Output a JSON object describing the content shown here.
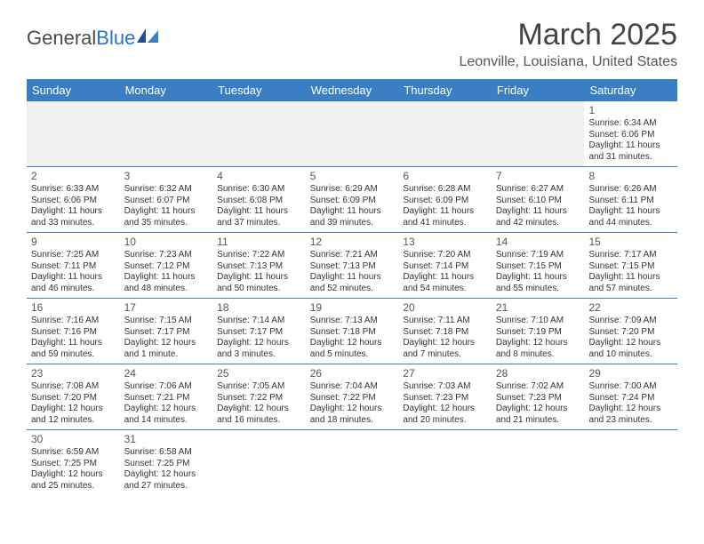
{
  "brand": {
    "part1": "General",
    "part2": "Blue"
  },
  "title": "March 2025",
  "location": "Leonville, Louisiana, United States",
  "calendar": {
    "type": "table",
    "header_bg": "#3a7fc4",
    "header_fg": "#ffffff",
    "row_border_color": "#3a7fc4",
    "empty_bg": "#f0f0f0",
    "text_color": "#333333",
    "day_headers": [
      "Sunday",
      "Monday",
      "Tuesday",
      "Wednesday",
      "Thursday",
      "Friday",
      "Saturday"
    ],
    "weeks": [
      [
        null,
        null,
        null,
        null,
        null,
        null,
        {
          "d": "1",
          "sr": "Sunrise: 6:34 AM",
          "ss": "Sunset: 6:06 PM",
          "dl1": "Daylight: 11 hours",
          "dl2": "and 31 minutes."
        }
      ],
      [
        {
          "d": "2",
          "sr": "Sunrise: 6:33 AM",
          "ss": "Sunset: 6:06 PM",
          "dl1": "Daylight: 11 hours",
          "dl2": "and 33 minutes."
        },
        {
          "d": "3",
          "sr": "Sunrise: 6:32 AM",
          "ss": "Sunset: 6:07 PM",
          "dl1": "Daylight: 11 hours",
          "dl2": "and 35 minutes."
        },
        {
          "d": "4",
          "sr": "Sunrise: 6:30 AM",
          "ss": "Sunset: 6:08 PM",
          "dl1": "Daylight: 11 hours",
          "dl2": "and 37 minutes."
        },
        {
          "d": "5",
          "sr": "Sunrise: 6:29 AM",
          "ss": "Sunset: 6:09 PM",
          "dl1": "Daylight: 11 hours",
          "dl2": "and 39 minutes."
        },
        {
          "d": "6",
          "sr": "Sunrise: 6:28 AM",
          "ss": "Sunset: 6:09 PM",
          "dl1": "Daylight: 11 hours",
          "dl2": "and 41 minutes."
        },
        {
          "d": "7",
          "sr": "Sunrise: 6:27 AM",
          "ss": "Sunset: 6:10 PM",
          "dl1": "Daylight: 11 hours",
          "dl2": "and 42 minutes."
        },
        {
          "d": "8",
          "sr": "Sunrise: 6:26 AM",
          "ss": "Sunset: 6:11 PM",
          "dl1": "Daylight: 11 hours",
          "dl2": "and 44 minutes."
        }
      ],
      [
        {
          "d": "9",
          "sr": "Sunrise: 7:25 AM",
          "ss": "Sunset: 7:11 PM",
          "dl1": "Daylight: 11 hours",
          "dl2": "and 46 minutes."
        },
        {
          "d": "10",
          "sr": "Sunrise: 7:23 AM",
          "ss": "Sunset: 7:12 PM",
          "dl1": "Daylight: 11 hours",
          "dl2": "and 48 minutes."
        },
        {
          "d": "11",
          "sr": "Sunrise: 7:22 AM",
          "ss": "Sunset: 7:13 PM",
          "dl1": "Daylight: 11 hours",
          "dl2": "and 50 minutes."
        },
        {
          "d": "12",
          "sr": "Sunrise: 7:21 AM",
          "ss": "Sunset: 7:13 PM",
          "dl1": "Daylight: 11 hours",
          "dl2": "and 52 minutes."
        },
        {
          "d": "13",
          "sr": "Sunrise: 7:20 AM",
          "ss": "Sunset: 7:14 PM",
          "dl1": "Daylight: 11 hours",
          "dl2": "and 54 minutes."
        },
        {
          "d": "14",
          "sr": "Sunrise: 7:19 AM",
          "ss": "Sunset: 7:15 PM",
          "dl1": "Daylight: 11 hours",
          "dl2": "and 55 minutes."
        },
        {
          "d": "15",
          "sr": "Sunrise: 7:17 AM",
          "ss": "Sunset: 7:15 PM",
          "dl1": "Daylight: 11 hours",
          "dl2": "and 57 minutes."
        }
      ],
      [
        {
          "d": "16",
          "sr": "Sunrise: 7:16 AM",
          "ss": "Sunset: 7:16 PM",
          "dl1": "Daylight: 11 hours",
          "dl2": "and 59 minutes."
        },
        {
          "d": "17",
          "sr": "Sunrise: 7:15 AM",
          "ss": "Sunset: 7:17 PM",
          "dl1": "Daylight: 12 hours",
          "dl2": "and 1 minute."
        },
        {
          "d": "18",
          "sr": "Sunrise: 7:14 AM",
          "ss": "Sunset: 7:17 PM",
          "dl1": "Daylight: 12 hours",
          "dl2": "and 3 minutes."
        },
        {
          "d": "19",
          "sr": "Sunrise: 7:13 AM",
          "ss": "Sunset: 7:18 PM",
          "dl1": "Daylight: 12 hours",
          "dl2": "and 5 minutes."
        },
        {
          "d": "20",
          "sr": "Sunrise: 7:11 AM",
          "ss": "Sunset: 7:18 PM",
          "dl1": "Daylight: 12 hours",
          "dl2": "and 7 minutes."
        },
        {
          "d": "21",
          "sr": "Sunrise: 7:10 AM",
          "ss": "Sunset: 7:19 PM",
          "dl1": "Daylight: 12 hours",
          "dl2": "and 8 minutes."
        },
        {
          "d": "22",
          "sr": "Sunrise: 7:09 AM",
          "ss": "Sunset: 7:20 PM",
          "dl1": "Daylight: 12 hours",
          "dl2": "and 10 minutes."
        }
      ],
      [
        {
          "d": "23",
          "sr": "Sunrise: 7:08 AM",
          "ss": "Sunset: 7:20 PM",
          "dl1": "Daylight: 12 hours",
          "dl2": "and 12 minutes."
        },
        {
          "d": "24",
          "sr": "Sunrise: 7:06 AM",
          "ss": "Sunset: 7:21 PM",
          "dl1": "Daylight: 12 hours",
          "dl2": "and 14 minutes."
        },
        {
          "d": "25",
          "sr": "Sunrise: 7:05 AM",
          "ss": "Sunset: 7:22 PM",
          "dl1": "Daylight: 12 hours",
          "dl2": "and 16 minutes."
        },
        {
          "d": "26",
          "sr": "Sunrise: 7:04 AM",
          "ss": "Sunset: 7:22 PM",
          "dl1": "Daylight: 12 hours",
          "dl2": "and 18 minutes."
        },
        {
          "d": "27",
          "sr": "Sunrise: 7:03 AM",
          "ss": "Sunset: 7:23 PM",
          "dl1": "Daylight: 12 hours",
          "dl2": "and 20 minutes."
        },
        {
          "d": "28",
          "sr": "Sunrise: 7:02 AM",
          "ss": "Sunset: 7:23 PM",
          "dl1": "Daylight: 12 hours",
          "dl2": "and 21 minutes."
        },
        {
          "d": "29",
          "sr": "Sunrise: 7:00 AM",
          "ss": "Sunset: 7:24 PM",
          "dl1": "Daylight: 12 hours",
          "dl2": "and 23 minutes."
        }
      ],
      [
        {
          "d": "30",
          "sr": "Sunrise: 6:59 AM",
          "ss": "Sunset: 7:25 PM",
          "dl1": "Daylight: 12 hours",
          "dl2": "and 25 minutes."
        },
        {
          "d": "31",
          "sr": "Sunrise: 6:58 AM",
          "ss": "Sunset: 7:25 PM",
          "dl1": "Daylight: 12 hours",
          "dl2": "and 27 minutes."
        },
        null,
        null,
        null,
        null,
        null
      ]
    ]
  }
}
